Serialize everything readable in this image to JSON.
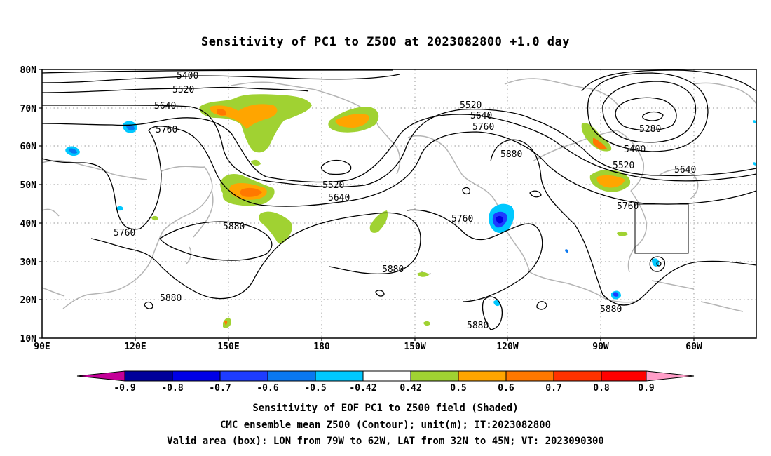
{
  "title": "Sensitivity of PC1 to Z500 at 2023082800 +1.0 day",
  "lat_labels": [
    "80N",
    "70N",
    "60N",
    "50N",
    "40N",
    "30N",
    "20N",
    "10N"
  ],
  "lon_labels": [
    "90E",
    "120E",
    "150E",
    "180",
    "150W",
    "120W",
    "90W",
    "60W"
  ],
  "contour_labels": {
    "c5400a": "5400",
    "c5520a": "5520",
    "c5640a": "5640",
    "c5760a": "5760",
    "c5520b": "5520",
    "c5640b": "5640",
    "c5760b": "5760",
    "c5880a": "5880",
    "c5280": "5280",
    "c5400b": "5400",
    "c5520c": "5520",
    "c5640c": "5640",
    "c5760c": "5760",
    "c5520d": "5520",
    "c5640d": "5640",
    "c5880b": "5880",
    "c5760d": "5760",
    "c5880c": "5880",
    "c5880d": "5880",
    "c5880e": "5880",
    "c5880f": "5880",
    "c5760e": "5760"
  },
  "colorbar": {
    "labels": [
      "-0.9",
      "-0.8",
      "-0.7",
      "-0.6",
      "-0.5",
      "-0.42",
      "0.42",
      "0.5",
      "0.6",
      "0.7",
      "0.8",
      "0.9"
    ],
    "colors": [
      "#c40098",
      "#00009a",
      "#0000e6",
      "#1e3cff",
      "#0a78f0",
      "#00c8ff",
      "#ffffff",
      "#a0d232",
      "#ffa500",
      "#ff7800",
      "#ff3200",
      "#ff0000",
      "#ff9ec8"
    ]
  },
  "captions": {
    "line1": "Sensitivity of EOF PC1 to Z500 field (Shaded)",
    "line2": "CMC ensemble mean Z500 (Contour); unit(m); IT:2023082800",
    "line3": "Valid area (box): LON from 79W to 62W, LAT from 32N to 45N; VT: 2023090300"
  }
}
